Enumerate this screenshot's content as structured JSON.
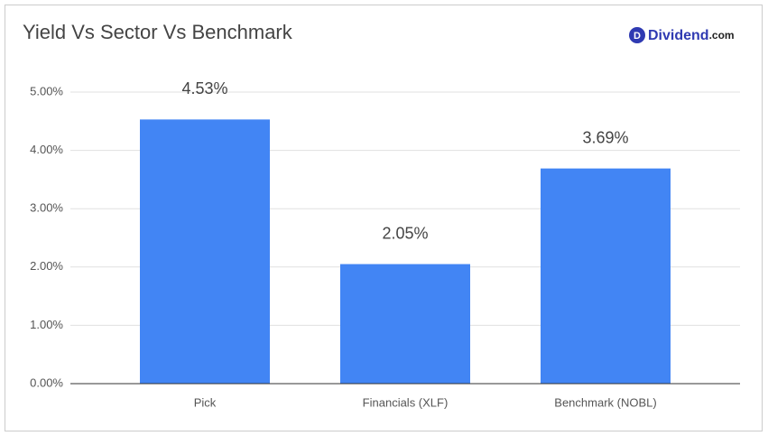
{
  "chart_data": {
    "type": "bar",
    "title": "Yield Vs Sector Vs Benchmark",
    "categories": [
      "Pick",
      "Financials (XLF)",
      "Benchmark (NOBL)"
    ],
    "values": [
      4.53,
      2.05,
      3.69
    ],
    "value_labels": [
      "4.53%",
      "2.05%",
      "3.69%"
    ],
    "color": "#4285f4",
    "ylim": [
      0,
      5
    ],
    "yticks": [
      {
        "value": 0,
        "label": "0.00%"
      },
      {
        "value": 1,
        "label": "1.00%"
      },
      {
        "value": 2,
        "label": "2.00%"
      },
      {
        "value": 3,
        "label": "3.00%"
      },
      {
        "value": 4,
        "label": "4.00%"
      },
      {
        "value": 5,
        "label": "5.00%"
      }
    ],
    "grid": true
  },
  "logo": {
    "icon": "D",
    "name": "Dividend",
    "suffix": ".com"
  }
}
